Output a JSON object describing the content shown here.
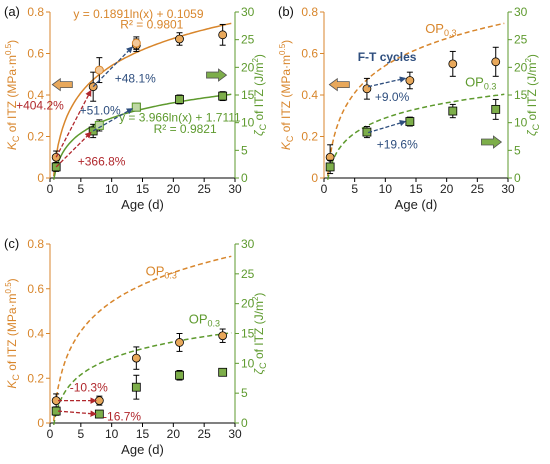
{
  "colors": {
    "orange": "#D8862C",
    "orange_fill": "#E8A85B",
    "green": "#5E9A2E",
    "green_fill": "#7DAE4A",
    "dark_red": "#B0272C",
    "blue": "#2E4E7E",
    "axis": "#000000"
  },
  "chart_data": [
    {
      "id": "a",
      "type": "scatter",
      "panel_label": "(a)",
      "xlabel": "Age (d)",
      "ylabel_left": "K_C of ITZ (MPa·m^0.5)",
      "ylabel_right": "ζ_C of ITZ (J/m²)",
      "xlim": [
        0,
        30
      ],
      "ylim_left": [
        0,
        0.8
      ],
      "ylim_right": [
        0,
        30
      ],
      "x_ticks": [
        0,
        5,
        10,
        15,
        20,
        25,
        30
      ],
      "y_ticks_left": [
        0,
        0.2,
        0.4,
        0.6,
        0.8
      ],
      "y_ticks_right": [
        0,
        5,
        10,
        15,
        20,
        25,
        30
      ],
      "series": [
        {
          "axis": "left",
          "marker": "circle",
          "x": [
            1,
            7,
            14,
            21,
            28
          ],
          "y": [
            0.1,
            0.44,
            0.64,
            0.67,
            0.69
          ],
          "err": [
            0.03,
            0.07,
            0.03,
            0.03,
            0.05
          ]
        },
        {
          "axis": "right",
          "marker": "square",
          "x": [
            1,
            7,
            14,
            21,
            28
          ],
          "y": [
            2.0,
            8.5,
            12.8,
            14.2,
            14.8
          ],
          "err": [
            0.8,
            1.2,
            0.6,
            0.8,
            0.8
          ]
        },
        {
          "axis": "left",
          "marker": "circle_open",
          "x": [
            8,
            14
          ],
          "y": [
            0.52,
            0.65
          ],
          "err": [
            0.06,
            0.03
          ]
        },
        {
          "axis": "right",
          "marker": "square_open",
          "x": [
            8,
            14
          ],
          "y": [
            9.5,
            12.8
          ],
          "err": [
            1.0,
            0.6
          ]
        }
      ],
      "fits": [
        {
          "axis": "left",
          "a": 0.1891,
          "b": 0.1059
        },
        {
          "axis": "right",
          "a": 3.966,
          "b": 1.7111
        }
      ],
      "annotations": {
        "eq_left_1": "y = 0.1891ln(x) + 0.1059",
        "eq_left_2": "R² = 0.9801",
        "eq_right_1": "y = 3.966ln(x) + 1.7111",
        "eq_right_2": "R² = 0.9821",
        "pct_1": "+48.1%",
        "pct_2": "+51.0%",
        "pct_3": "+404.2%",
        "pct_4": "+366.8%"
      }
    },
    {
      "id": "b",
      "type": "scatter",
      "panel_label": "(b)",
      "xlabel": "Age (d)",
      "ylabel_left": "K_C of ITZ (MPa·m^0.5)",
      "ylabel_right": "ζ_C of ITZ (J/m²)",
      "xlim": [
        0,
        30
      ],
      "ylim_left": [
        0,
        0.8
      ],
      "ylim_right": [
        0,
        30
      ],
      "x_ticks": [
        0,
        5,
        10,
        15,
        20,
        25,
        30
      ],
      "y_ticks_left": [
        0,
        0.2,
        0.4,
        0.6,
        0.8
      ],
      "y_ticks_right": [
        0,
        5,
        10,
        15,
        20,
        25,
        30
      ],
      "series": [
        {
          "axis": "left",
          "marker": "circle",
          "x": [
            1,
            7,
            14,
            21,
            28
          ],
          "y": [
            0.1,
            0.43,
            0.47,
            0.55,
            0.56
          ],
          "err": [
            0.06,
            0.05,
            0.04,
            0.06,
            0.07
          ]
        },
        {
          "axis": "right",
          "marker": "square",
          "x": [
            1,
            7,
            14,
            21,
            28
          ],
          "y": [
            2.0,
            8.3,
            10.2,
            12.1,
            12.4
          ],
          "err": [
            1.2,
            1.0,
            0.8,
            1.2,
            1.8
          ]
        }
      ],
      "reference_curves": [
        {
          "axis": "left",
          "a": 0.1891,
          "b": 0.1059,
          "label": "OP",
          "label_sub": "0.3"
        },
        {
          "axis": "right",
          "a": 3.966,
          "b": 1.7111,
          "label": "OP",
          "label_sub": "0.3"
        }
      ],
      "annotations": {
        "title_inner": "F-T cycles",
        "pct_1": "+9.0%",
        "pct_2": "+19.6%"
      }
    },
    {
      "id": "c",
      "type": "scatter",
      "panel_label": "(c)",
      "xlabel": "Age (d)",
      "ylabel_left": "K_C of ITZ (MPa·m^0.5)",
      "ylabel_right": "ζ_C of ITZ (J/m²)",
      "xlim": [
        0,
        30
      ],
      "ylim_left": [
        0,
        0.8
      ],
      "ylim_right": [
        0,
        30
      ],
      "x_ticks": [
        0,
        5,
        10,
        15,
        20,
        25,
        30
      ],
      "y_ticks_left": [
        0,
        0.2,
        0.4,
        0.6,
        0.8
      ],
      "y_ticks_right": [
        0,
        5,
        10,
        15,
        20,
        25,
        30
      ],
      "series": [
        {
          "axis": "left",
          "marker": "circle",
          "x": [
            1,
            8,
            14,
            21,
            28
          ],
          "y": [
            0.1,
            0.1,
            0.29,
            0.36,
            0.39
          ],
          "err": [
            0.03,
            0.02,
            0.05,
            0.04,
            0.03
          ]
        },
        {
          "axis": "right",
          "marker": "square",
          "x": [
            1,
            8,
            14,
            21,
            28
          ],
          "y": [
            2.0,
            1.5,
            6.0,
            8.0,
            8.5
          ],
          "err": [
            0.7,
            0.6,
            2.0,
            0.8,
            0.5
          ]
        }
      ],
      "reference_curves": [
        {
          "axis": "left",
          "a": 0.1891,
          "b": 0.1059,
          "label": "OP",
          "label_sub": "0.3"
        },
        {
          "axis": "right",
          "a": 3.966,
          "b": 1.7111,
          "label": "OP",
          "label_sub": "0.3"
        }
      ],
      "annotations": {
        "pct_1": "-10.3%",
        "pct_2": "-16.7%"
      }
    }
  ]
}
